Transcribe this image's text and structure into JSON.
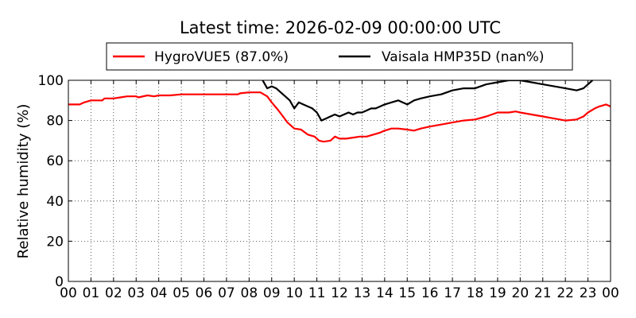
{
  "chart_data": {
    "type": "line",
    "title": "Latest time: 2026-02-09 00:00:00 UTC",
    "xlabel": "",
    "ylabel": "Relative humidity (%)",
    "ylim": [
      0,
      100
    ],
    "xlim": [
      0,
      24
    ],
    "x_tick_labels": [
      "00",
      "01",
      "02",
      "03",
      "04",
      "05",
      "06",
      "07",
      "08",
      "09",
      "10",
      "11",
      "12",
      "13",
      "14",
      "15",
      "16",
      "17",
      "18",
      "19",
      "20",
      "21",
      "22",
      "23",
      "00"
    ],
    "y_ticks": [
      0,
      20,
      40,
      60,
      80,
      100
    ],
    "grid": true,
    "legend_placement": "top",
    "series": [
      {
        "name": "HygroVUE5 (87.0%)",
        "color": "#ff0000",
        "x": [
          0,
          0.5,
          0.7,
          1.0,
          1.5,
          1.6,
          2.0,
          2.3,
          2.6,
          3.0,
          3.1,
          3.5,
          3.8,
          4.0,
          4.5,
          5.0,
          6.0,
          7.0,
          7.5,
          7.6,
          8.0,
          8.5,
          8.8,
          9.0,
          9.3,
          9.5,
          9.7,
          10.0,
          10.3,
          10.6,
          10.9,
          11.1,
          11.3,
          11.6,
          11.8,
          12.0,
          12.3,
          12.6,
          12.9,
          13.2,
          13.5,
          13.8,
          14.0,
          14.3,
          14.6,
          15.0,
          15.3,
          15.6,
          16.0,
          16.5,
          17.0,
          17.5,
          18.0,
          18.5,
          19.0,
          19.5,
          19.8,
          20.0,
          20.5,
          21.0,
          21.5,
          22.0,
          22.5,
          22.8,
          23.0,
          23.3,
          23.5,
          23.8,
          24.0
        ],
        "y": [
          88,
          88,
          89,
          90,
          90,
          91,
          91,
          91.5,
          92,
          92,
          91.5,
          92.5,
          92,
          92.5,
          92.5,
          93,
          93,
          93,
          93,
          93.5,
          94,
          94,
          92,
          89,
          85,
          82,
          79,
          76,
          75.5,
          73,
          72,
          70,
          69.5,
          70,
          72,
          71,
          71,
          71.5,
          72,
          72,
          73,
          74,
          75,
          76,
          76,
          75.5,
          75,
          76,
          77,
          78,
          79,
          80,
          80.5,
          82,
          84,
          84,
          84.5,
          84,
          83,
          82,
          81,
          80,
          80.5,
          82,
          84,
          86,
          87,
          88,
          87
        ]
      },
      {
        "name": "Vaisala HMP35D (nan%)",
        "color": "#000000",
        "x": [
          8.6,
          8.8,
          9.0,
          9.2,
          9.4,
          9.6,
          9.8,
          10.0,
          10.2,
          10.4,
          10.6,
          10.8,
          11.0,
          11.2,
          11.4,
          11.6,
          11.8,
          12.0,
          12.2,
          12.4,
          12.6,
          12.8,
          13.0,
          13.2,
          13.4,
          13.6,
          13.8,
          14.0,
          14.3,
          14.6,
          15.0,
          15.3,
          15.6,
          16.0,
          16.5,
          17.0,
          17.5,
          18.0,
          18.5,
          19.0,
          19.5,
          20.0,
          20.5,
          21.0,
          21.5,
          22.0,
          22.5,
          22.8,
          23.0,
          23.2
        ],
        "y": [
          100,
          96,
          97,
          96,
          94,
          92,
          90,
          86,
          89,
          88,
          87,
          86,
          84,
          80,
          81,
          82,
          83,
          82,
          83,
          84,
          83,
          84,
          84,
          85,
          86,
          86,
          87,
          88,
          89,
          90,
          88,
          90,
          91,
          92,
          93,
          95,
          96,
          96,
          98,
          99,
          100,
          100,
          99,
          98,
          97,
          96,
          95,
          96,
          98,
          100
        ]
      }
    ]
  }
}
